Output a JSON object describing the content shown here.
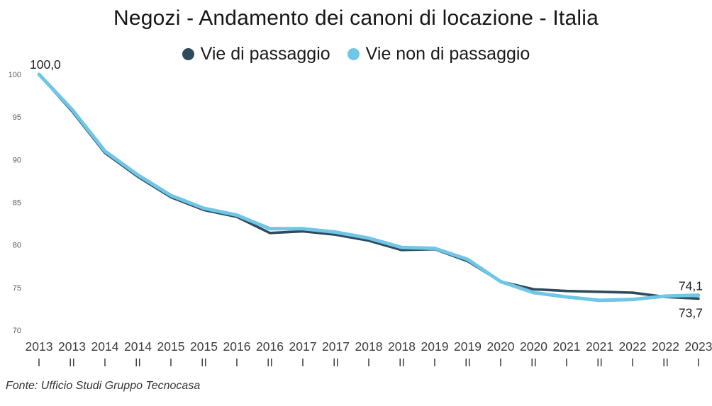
{
  "title": "Negozi - Andamento dei canoni di locazione - Italia",
  "legend": [
    {
      "label": "Vie di passaggio",
      "color": "#2E4A5B"
    },
    {
      "label": "Vie non di passaggio",
      "color": "#70C6E6"
    }
  ],
  "footer": "Fonte: Ufficio Studi Gruppo Tecnocasa",
  "chart_data": {
    "type": "line",
    "categories": [
      {
        "year": "2013",
        "sem": "I"
      },
      {
        "year": "2013",
        "sem": "II"
      },
      {
        "year": "2014",
        "sem": "I"
      },
      {
        "year": "2014",
        "sem": "II"
      },
      {
        "year": "2015",
        "sem": "I"
      },
      {
        "year": "2015",
        "sem": "II"
      },
      {
        "year": "2016",
        "sem": "I"
      },
      {
        "year": "2016",
        "sem": "II"
      },
      {
        "year": "2017",
        "sem": "I"
      },
      {
        "year": "2017",
        "sem": "II"
      },
      {
        "year": "2018",
        "sem": "I"
      },
      {
        "year": "2018",
        "sem": "II"
      },
      {
        "year": "2019",
        "sem": "I"
      },
      {
        "year": "2019",
        "sem": "II"
      },
      {
        "year": "2020",
        "sem": "I"
      },
      {
        "year": "2020",
        "sem": "II"
      },
      {
        "year": "2021",
        "sem": "I"
      },
      {
        "year": "2021",
        "sem": "II"
      },
      {
        "year": "2022",
        "sem": "I"
      },
      {
        "year": "2022",
        "sem": "II"
      },
      {
        "year": "2023",
        "sem": "I"
      }
    ],
    "series": [
      {
        "name": "Vie di passaggio",
        "color": "#2E4A5B",
        "stroke_width": 3.6,
        "values": [
          100.0,
          95.7,
          90.8,
          88.0,
          85.6,
          84.1,
          83.3,
          81.4,
          81.6,
          81.2,
          80.5,
          79.4,
          79.5,
          78.1,
          75.7,
          74.8,
          74.6,
          74.5,
          74.4,
          73.9,
          73.7
        ]
      },
      {
        "name": "Vie non di passaggio",
        "color": "#70C6E6",
        "stroke_width": 5,
        "values": [
          100.0,
          95.9,
          91.0,
          88.2,
          85.8,
          84.3,
          83.5,
          81.9,
          81.9,
          81.5,
          80.8,
          79.7,
          79.6,
          78.3,
          75.7,
          74.4,
          73.9,
          73.5,
          73.6,
          74.0,
          74.1
        ]
      }
    ],
    "y_ticks": [
      100,
      95,
      90,
      85,
      80,
      75,
      70
    ],
    "ylim": [
      70,
      100
    ],
    "grid": false,
    "legend_position": "top",
    "annotations": {
      "start": "100,0",
      "end_top": "74,1",
      "end_bottom": "73,7"
    }
  }
}
